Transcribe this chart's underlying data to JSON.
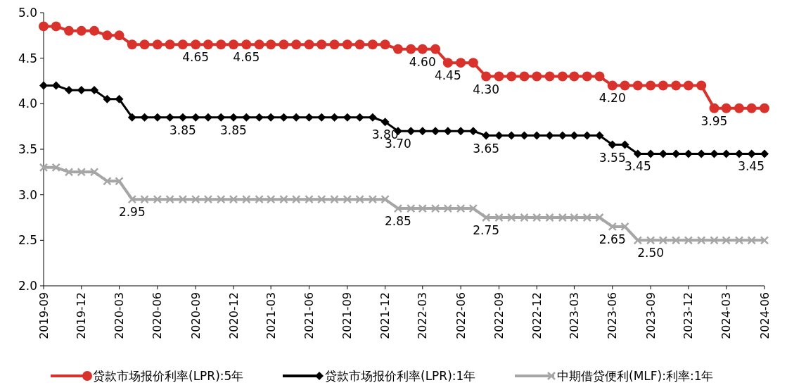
{
  "chart_data": {
    "type": "line",
    "x": [
      "2019-09",
      "2019-10",
      "2019-11",
      "2019-12",
      "2020-01",
      "2020-02",
      "2020-03",
      "2020-04",
      "2020-05",
      "2020-06",
      "2020-07",
      "2020-08",
      "2020-09",
      "2020-10",
      "2020-11",
      "2020-12",
      "2021-01",
      "2021-02",
      "2021-03",
      "2021-04",
      "2021-05",
      "2021-06",
      "2021-07",
      "2021-08",
      "2021-09",
      "2021-10",
      "2021-11",
      "2021-12",
      "2022-01",
      "2022-02",
      "2022-03",
      "2022-04",
      "2022-05",
      "2022-06",
      "2022-07",
      "2022-08",
      "2022-09",
      "2022-10",
      "2022-11",
      "2022-12",
      "2023-01",
      "2023-02",
      "2023-03",
      "2023-04",
      "2023-05",
      "2023-06",
      "2023-07",
      "2023-08",
      "2023-09",
      "2023-10",
      "2023-11",
      "2023-12",
      "2024-01",
      "2024-02",
      "2024-03",
      "2024-04",
      "2024-05",
      "2024-06"
    ],
    "series": [
      {
        "name": "贷款市场报价利率(LPR):5年",
        "color": "#d9312b",
        "marker": "circle",
        "values": [
          4.85,
          4.85,
          4.8,
          4.8,
          4.8,
          4.75,
          4.75,
          4.65,
          4.65,
          4.65,
          4.65,
          4.65,
          4.65,
          4.65,
          4.65,
          4.65,
          4.65,
          4.65,
          4.65,
          4.65,
          4.65,
          4.65,
          4.65,
          4.65,
          4.65,
          4.65,
          4.65,
          4.65,
          4.6,
          4.6,
          4.6,
          4.6,
          4.45,
          4.45,
          4.45,
          4.3,
          4.3,
          4.3,
          4.3,
          4.3,
          4.3,
          4.3,
          4.3,
          4.3,
          4.3,
          4.2,
          4.2,
          4.2,
          4.2,
          4.2,
          4.2,
          4.2,
          4.2,
          3.95,
          3.95,
          3.95,
          3.95,
          3.95
        ]
      },
      {
        "name": "贷款市场报价利率(LPR):1年",
        "color": "#000000",
        "marker": "diamond",
        "values": [
          4.2,
          4.2,
          4.15,
          4.15,
          4.15,
          4.05,
          4.05,
          3.85,
          3.85,
          3.85,
          3.85,
          3.85,
          3.85,
          3.85,
          3.85,
          3.85,
          3.85,
          3.85,
          3.85,
          3.85,
          3.85,
          3.85,
          3.85,
          3.85,
          3.85,
          3.85,
          3.85,
          3.8,
          3.7,
          3.7,
          3.7,
          3.7,
          3.7,
          3.7,
          3.7,
          3.65,
          3.65,
          3.65,
          3.65,
          3.65,
          3.65,
          3.65,
          3.65,
          3.65,
          3.65,
          3.55,
          3.55,
          3.45,
          3.45,
          3.45,
          3.45,
          3.45,
          3.45,
          3.45,
          3.45,
          3.45,
          3.45,
          3.45
        ]
      },
      {
        "name": "中期借贷便利(MLF):利率:1年",
        "color": "#a6a6a6",
        "marker": "cross",
        "values": [
          3.3,
          3.3,
          3.25,
          3.25,
          3.25,
          3.15,
          3.15,
          2.95,
          2.95,
          2.95,
          2.95,
          2.95,
          2.95,
          2.95,
          2.95,
          2.95,
          2.95,
          2.95,
          2.95,
          2.95,
          2.95,
          2.95,
          2.95,
          2.95,
          2.95,
          2.95,
          2.95,
          2.95,
          2.85,
          2.85,
          2.85,
          2.85,
          2.85,
          2.85,
          2.85,
          2.75,
          2.75,
          2.75,
          2.75,
          2.75,
          2.75,
          2.75,
          2.75,
          2.75,
          2.75,
          2.65,
          2.65,
          2.5,
          2.5,
          2.5,
          2.5,
          2.5,
          2.5,
          2.5,
          2.5,
          2.5,
          2.5,
          2.5
        ]
      }
    ],
    "xlim": [
      "2019-09",
      "2024-06"
    ],
    "xticks": [
      "2019-09",
      "2019-12",
      "2020-03",
      "2020-06",
      "2020-09",
      "2020-12",
      "2021-03",
      "2021-06",
      "2021-09",
      "2021-12",
      "2022-03",
      "2022-06",
      "2022-09",
      "2022-12",
      "2023-03",
      "2023-06",
      "2023-09",
      "2023-12",
      "2024-03",
      "2024-06"
    ],
    "ylim": [
      2.0,
      5.0
    ],
    "yticks": [
      {
        "value": 2.0,
        "label": "2.0"
      },
      {
        "value": 2.5,
        "label": "2.5"
      },
      {
        "value": 3.0,
        "label": "3.0"
      },
      {
        "value": 3.5,
        "label": "3.5"
      },
      {
        "value": 4.0,
        "label": "4.0"
      },
      {
        "value": 4.5,
        "label": "4.5"
      },
      {
        "value": 5.0,
        "label": "5.0"
      }
    ],
    "annotations": [
      {
        "text": "4.65",
        "x": "2020-09",
        "y": 4.65
      },
      {
        "text": "4.65",
        "x": "2021-01",
        "y": 4.65
      },
      {
        "text": "4.60",
        "x": "2022-03",
        "y": 4.6
      },
      {
        "text": "4.45",
        "x": "2022-05",
        "y": 4.45
      },
      {
        "text": "4.30",
        "x": "2022-08",
        "y": 4.3
      },
      {
        "text": "4.20",
        "x": "2023-06",
        "y": 4.2
      },
      {
        "text": "3.95",
        "x": "2024-02",
        "y": 3.95
      },
      {
        "text": "3.85",
        "x": "2020-08",
        "y": 3.85
      },
      {
        "text": "3.85",
        "x": "2020-12",
        "y": 3.85
      },
      {
        "text": "3.80",
        "x": "2021-12",
        "y": 3.8
      },
      {
        "text": "3.70",
        "x": "2022-01",
        "y": 3.7
      },
      {
        "text": "3.65",
        "x": "2022-08",
        "y": 3.65
      },
      {
        "text": "3.55",
        "x": "2023-06",
        "y": 3.55
      },
      {
        "text": "3.45",
        "x": "2023-08",
        "y": 3.45
      },
      {
        "text": "3.45",
        "x": "2024-06",
        "y": 3.45
      },
      {
        "text": "2.95",
        "x": "2020-04",
        "y": 2.95
      },
      {
        "text": "2.85",
        "x": "2022-01",
        "y": 2.85
      },
      {
        "text": "2.75",
        "x": "2022-08",
        "y": 2.75
      },
      {
        "text": "2.65",
        "x": "2023-06",
        "y": 2.65
      },
      {
        "text": "2.50",
        "x": "2023-09",
        "y": 2.5
      }
    ],
    "legend": "bottom"
  }
}
